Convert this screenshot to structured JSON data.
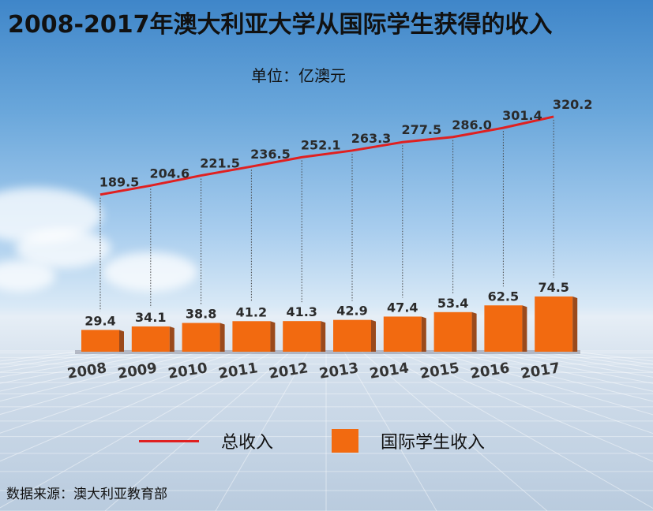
{
  "title": "2008-2017年澳大利亚大学从国际学生获得的收入",
  "unit_label": "单位：亿澳元",
  "source": "数据来源：澳大利亚教育部",
  "colors": {
    "total_line": "#e02020",
    "bar": "#f26a10",
    "bar_side": "#9a4a1c"
  },
  "chart_data": {
    "type": "bar",
    "categories": [
      "2008",
      "2009",
      "2010",
      "2011",
      "2012",
      "2013",
      "2014",
      "2015",
      "2016",
      "2017"
    ],
    "series": [
      {
        "name": "总收入",
        "type": "line",
        "values": [
          189.5,
          204.6,
          221.5,
          236.5,
          252.1,
          263.3,
          277.5,
          286.0,
          301.4,
          320.2
        ],
        "labels": [
          "189.5",
          "204.6",
          "221.5",
          "236.5",
          "252.1",
          "263.3",
          "277.5",
          "286.0",
          "301.4",
          "320.2"
        ]
      },
      {
        "name": "国际学生收入",
        "type": "bar",
        "values": [
          29.4,
          34.1,
          38.8,
          41.2,
          41.3,
          42.9,
          47.4,
          53.4,
          62.5,
          74.5
        ],
        "labels": [
          "29.4",
          "34.1",
          "38.8",
          "41.2",
          "41.3",
          "42.9",
          "47.4",
          "53.4",
          "62.5",
          "74.5"
        ]
      }
    ],
    "title": "2008-2017年澳大利亚大学从国际学生获得的收入",
    "ylabel": "",
    "grid": false,
    "legend_position": "bottom"
  }
}
